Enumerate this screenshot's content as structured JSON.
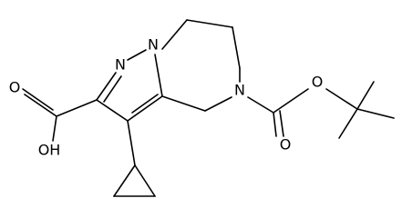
{
  "atoms": [
    "N",
    "N",
    "N",
    "O",
    "OH",
    "O",
    "O"
  ]
}
